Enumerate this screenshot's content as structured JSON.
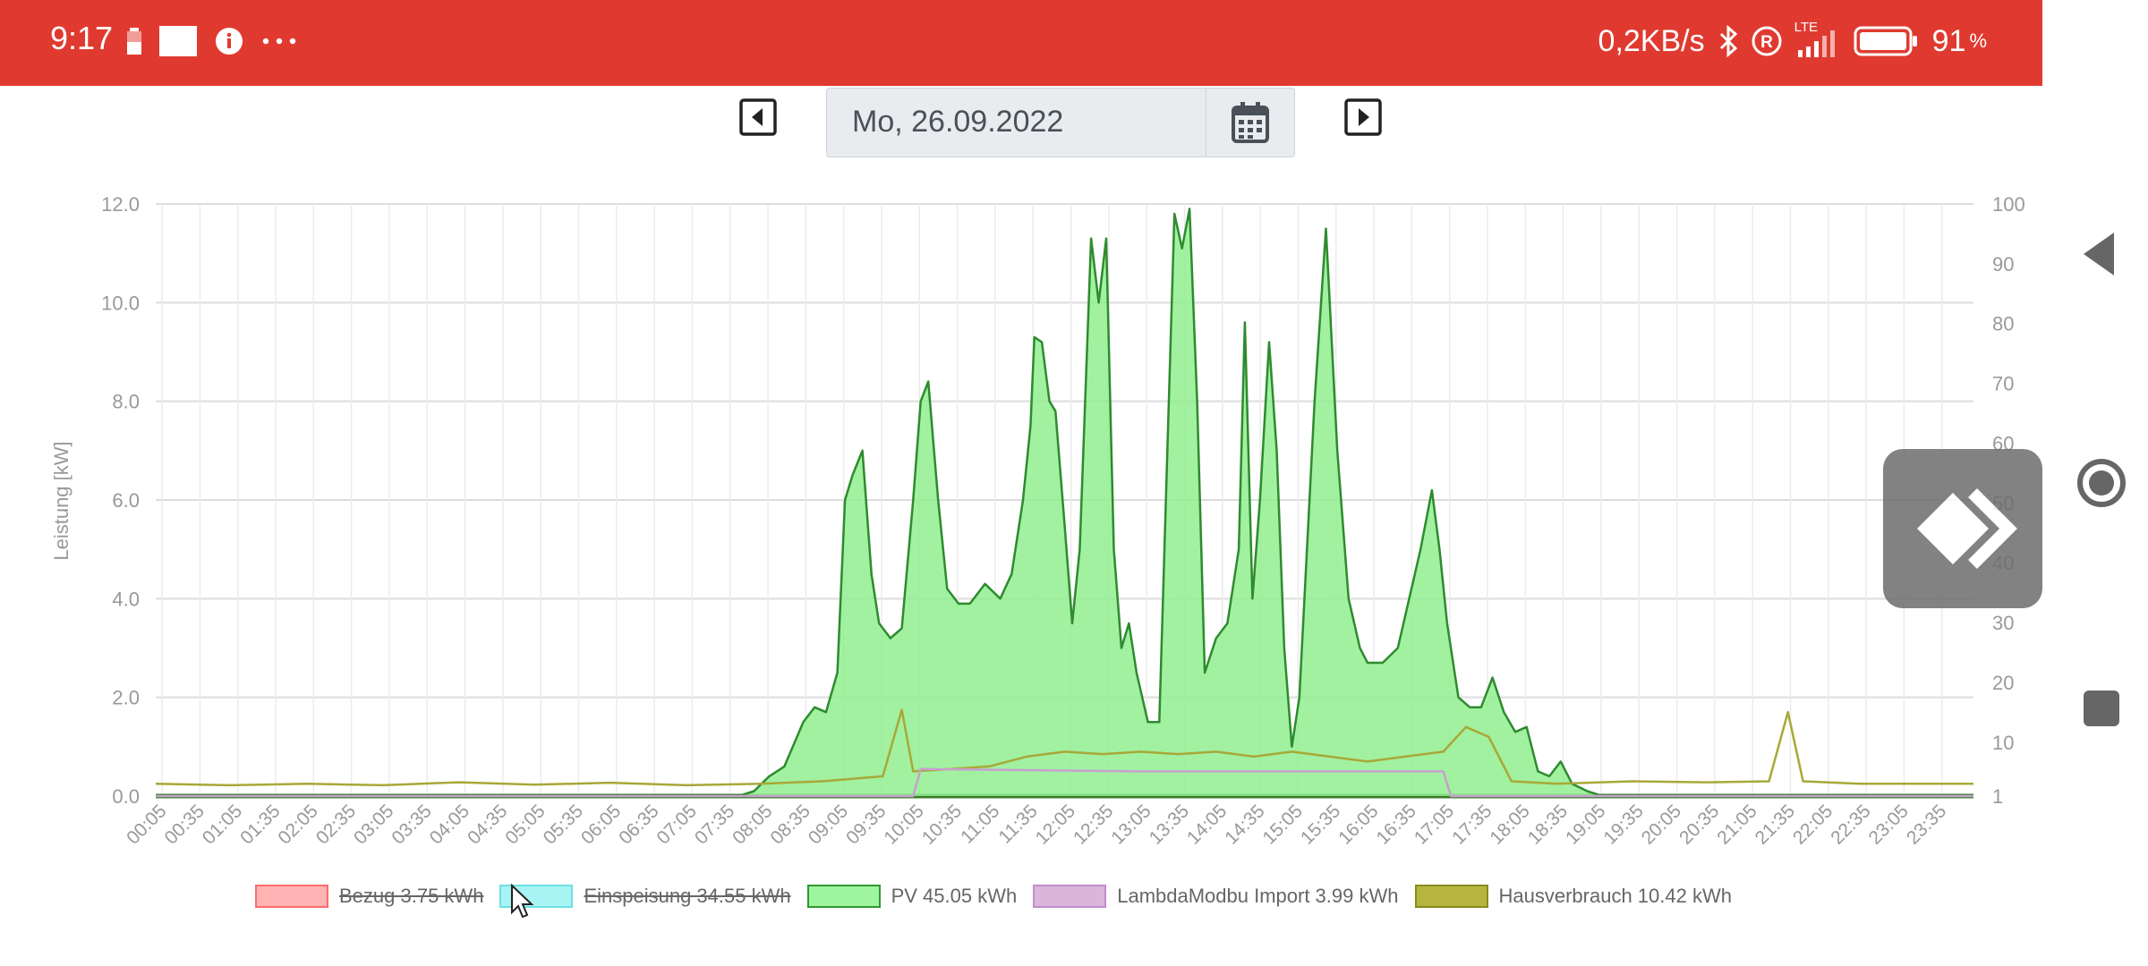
{
  "status_bar": {
    "time": "9:17",
    "network_speed": "0,2KB/s",
    "lte_label": "LTE",
    "battery": "91",
    "battery_unit": "%"
  },
  "date_nav": {
    "date": "Mo, 26.09.2022"
  },
  "chart_data": {
    "type": "area",
    "ylabel": "Leistung [kW]",
    "ylim": [
      0,
      12
    ],
    "y_ticks": [
      "0.0",
      "2.0",
      "4.0",
      "6.0",
      "8.0",
      "10.0",
      "12.0"
    ],
    "y2lim": [
      1,
      100
    ],
    "y2_ticks": [
      "1",
      "10",
      "20",
      "30",
      "40",
      "50",
      "60",
      "70",
      "80",
      "90",
      "100"
    ],
    "x_ticks": [
      "00:05",
      "00:35",
      "01:05",
      "01:35",
      "02:05",
      "02:35",
      "03:05",
      "03:35",
      "04:05",
      "04:35",
      "05:05",
      "05:35",
      "06:05",
      "06:35",
      "07:05",
      "07:35",
      "08:05",
      "08:35",
      "09:05",
      "09:35",
      "10:05",
      "10:35",
      "11:05",
      "11:35",
      "12:05",
      "12:35",
      "13:05",
      "13:35",
      "14:05",
      "14:35",
      "15:05",
      "15:35",
      "16:05",
      "16:35",
      "17:05",
      "17:35",
      "18:05",
      "18:35",
      "19:05",
      "19:35",
      "20:05",
      "20:35",
      "21:05",
      "21:35",
      "22:05",
      "22:35",
      "23:05",
      "23:35"
    ],
    "grid": true,
    "series": [
      {
        "name": "PV 45.05 kWh",
        "color": "#2e8b2e",
        "fill": "#90ee90",
        "points": [
          [
            0,
            0
          ],
          [
            7.7,
            0
          ],
          [
            7.9,
            0.1
          ],
          [
            8.1,
            0.4
          ],
          [
            8.3,
            0.6
          ],
          [
            8.55,
            1.5
          ],
          [
            8.7,
            1.8
          ],
          [
            8.85,
            1.7
          ],
          [
            9.0,
            2.5
          ],
          [
            9.1,
            6.0
          ],
          [
            9.2,
            6.5
          ],
          [
            9.33,
            7.0
          ],
          [
            9.45,
            4.5
          ],
          [
            9.55,
            3.5
          ],
          [
            9.7,
            3.2
          ],
          [
            9.85,
            3.4
          ],
          [
            10.0,
            6.0
          ],
          [
            10.1,
            8.0
          ],
          [
            10.2,
            8.4
          ],
          [
            10.33,
            6.0
          ],
          [
            10.45,
            4.2
          ],
          [
            10.6,
            3.9
          ],
          [
            10.75,
            3.9
          ],
          [
            10.95,
            4.3
          ],
          [
            11.15,
            4.0
          ],
          [
            11.3,
            4.5
          ],
          [
            11.45,
            6.0
          ],
          [
            11.55,
            7.5
          ],
          [
            11.6,
            9.3
          ],
          [
            11.7,
            9.2
          ],
          [
            11.8,
            8.0
          ],
          [
            11.88,
            7.8
          ],
          [
            12.0,
            5.5
          ],
          [
            12.1,
            3.5
          ],
          [
            12.2,
            5.0
          ],
          [
            12.35,
            11.3
          ],
          [
            12.45,
            10.0
          ],
          [
            12.55,
            11.3
          ],
          [
            12.65,
            5.0
          ],
          [
            12.75,
            3.0
          ],
          [
            12.85,
            3.5
          ],
          [
            12.95,
            2.5
          ],
          [
            13.1,
            1.5
          ],
          [
            13.25,
            1.5
          ],
          [
            13.45,
            11.8
          ],
          [
            13.55,
            11.1
          ],
          [
            13.65,
            11.9
          ],
          [
            13.75,
            8.0
          ],
          [
            13.85,
            2.5
          ],
          [
            14.0,
            3.2
          ],
          [
            14.15,
            3.5
          ],
          [
            14.3,
            5.0
          ],
          [
            14.38,
            9.6
          ],
          [
            14.48,
            4.0
          ],
          [
            14.58,
            6.0
          ],
          [
            14.7,
            9.2
          ],
          [
            14.8,
            7.0
          ],
          [
            14.9,
            3.0
          ],
          [
            15.0,
            1.0
          ],
          [
            15.1,
            2.0
          ],
          [
            15.2,
            5.0
          ],
          [
            15.3,
            8.0
          ],
          [
            15.45,
            11.5
          ],
          [
            15.6,
            7.0
          ],
          [
            15.75,
            4.0
          ],
          [
            15.9,
            3.0
          ],
          [
            16.0,
            2.7
          ],
          [
            16.2,
            2.7
          ],
          [
            16.4,
            3.0
          ],
          [
            16.55,
            4.0
          ],
          [
            16.7,
            5.0
          ],
          [
            16.85,
            6.2
          ],
          [
            16.95,
            5.0
          ],
          [
            17.05,
            3.5
          ],
          [
            17.2,
            2.0
          ],
          [
            17.35,
            1.8
          ],
          [
            17.5,
            1.8
          ],
          [
            17.65,
            2.4
          ],
          [
            17.8,
            1.7
          ],
          [
            17.95,
            1.3
          ],
          [
            18.1,
            1.4
          ],
          [
            18.25,
            0.5
          ],
          [
            18.4,
            0.4
          ],
          [
            18.55,
            0.7
          ],
          [
            18.7,
            0.25
          ],
          [
            18.9,
            0.1
          ],
          [
            19.1,
            0
          ],
          [
            24,
            0
          ]
        ]
      },
      {
        "name": "Hausverbrauch 10.42 kWh",
        "color": "#a8a838",
        "points": [
          [
            0,
            0.25
          ],
          [
            1,
            0.22
          ],
          [
            2,
            0.25
          ],
          [
            3,
            0.22
          ],
          [
            4,
            0.28
          ],
          [
            5,
            0.23
          ],
          [
            6,
            0.27
          ],
          [
            7,
            0.22
          ],
          [
            8,
            0.25
          ],
          [
            8.8,
            0.3
          ],
          [
            9.6,
            0.4
          ],
          [
            9.85,
            1.75
          ],
          [
            10.0,
            0.5
          ],
          [
            10.5,
            0.55
          ],
          [
            11,
            0.6
          ],
          [
            11.5,
            0.8
          ],
          [
            12,
            0.9
          ],
          [
            12.5,
            0.85
          ],
          [
            13,
            0.9
          ],
          [
            13.5,
            0.85
          ],
          [
            14,
            0.9
          ],
          [
            14.5,
            0.8
          ],
          [
            15,
            0.9
          ],
          [
            15.5,
            0.8
          ],
          [
            16,
            0.7
          ],
          [
            16.5,
            0.8
          ],
          [
            17,
            0.9
          ],
          [
            17.3,
            1.4
          ],
          [
            17.6,
            1.2
          ],
          [
            17.9,
            0.3
          ],
          [
            18.5,
            0.25
          ],
          [
            19.5,
            0.3
          ],
          [
            20.5,
            0.28
          ],
          [
            21.3,
            0.3
          ],
          [
            21.55,
            1.7
          ],
          [
            21.75,
            0.3
          ],
          [
            22.5,
            0.25
          ],
          [
            24,
            0.25
          ]
        ]
      },
      {
        "name": "LambdaModbu Import 3.99 kWh",
        "color": "#c8a0d0",
        "points": [
          [
            0,
            0
          ],
          [
            10.0,
            0
          ],
          [
            10.1,
            0.55
          ],
          [
            13,
            0.5
          ],
          [
            16,
            0.5
          ],
          [
            17.0,
            0.5
          ],
          [
            17.1,
            0
          ],
          [
            24,
            0
          ]
        ]
      },
      {
        "name": "Bezug 3.75 kWh",
        "color": "#ff8080",
        "hidden": true,
        "points": []
      },
      {
        "name": "Einspeisung 34.55 kWh",
        "color": "#80f0f0",
        "hidden": true,
        "points": []
      }
    ]
  },
  "legend": [
    {
      "label": "Bezug 3.75 kWh",
      "fill": "#ffb3b3",
      "border": "#ff6b6b",
      "struck": true
    },
    {
      "label": "Einspeisung 34.55 kWh",
      "fill": "#a8f4f4",
      "border": "#6ee0e0",
      "struck": true
    },
    {
      "label": "PV 45.05 kWh",
      "fill": "#9ff59f",
      "border": "#2e9a2e",
      "struck": false
    },
    {
      "label": "LambdaModbu Import 3.99 kWh",
      "fill": "#dcb5dc",
      "border": "#c090c8",
      "struck": false
    },
    {
      "label": "Hausverbrauch 10.42 kWh",
      "fill": "#b5b540",
      "border": "#8a8a20",
      "struck": false
    }
  ]
}
